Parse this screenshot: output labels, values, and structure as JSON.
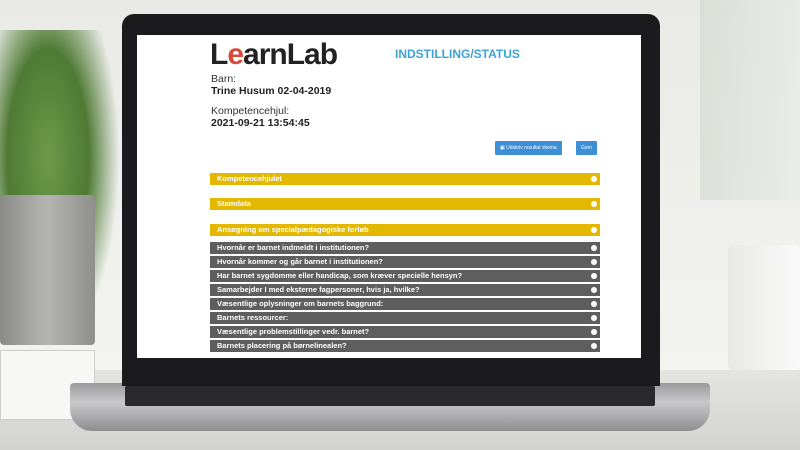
{
  "app": {
    "logo": "LearnLab",
    "page_title": "INDSTILLING/STATUS"
  },
  "child": {
    "label": "Barn:",
    "value": "Trine Husum 02-04-2019"
  },
  "wheel": {
    "label": "Kompetencehjul:",
    "value": "2021-09-21 13:54:45"
  },
  "toolbar": {
    "print_label": "Udskriv resultat skema",
    "save_label": "Gem",
    "accent": "#3d8fd6"
  },
  "sections": [
    {
      "label": "Kompetencehjulet"
    },
    {
      "label": "Stamdata"
    },
    {
      "label": "Ansøgning om specialpædagogiske forløb"
    }
  ],
  "questions": [
    {
      "label": "Hvornår er barnet indmeldt i institutionen?"
    },
    {
      "label": "Hvornår kommer og går barnet i institutionen?"
    },
    {
      "label": "Har barnet sygdomme eller handicap, som kræver specielle hensyn?"
    },
    {
      "label": "Samarbejder I med eksterne fagpersoner, hvis ja, hvilke?"
    },
    {
      "label": "Væsentlige oplysninger om barnets baggrund:"
    },
    {
      "label": "Barnets ressourcer:"
    },
    {
      "label": "Væsentlige problemstillinger vedr. barnet?"
    },
    {
      "label": "Barnets placering på børnelinealen?"
    }
  ],
  "colors": {
    "section": "#e5b800",
    "question": "#5e5e5e",
    "title": "#3aa4d6"
  }
}
